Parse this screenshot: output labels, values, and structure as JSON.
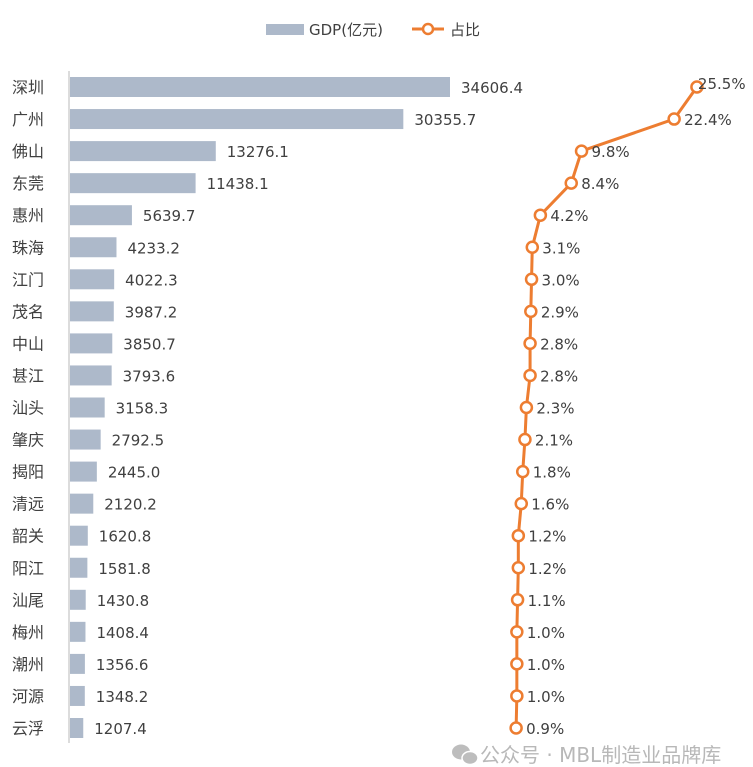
{
  "chart_data": {
    "type": "bar",
    "title": "",
    "xlabel": "",
    "ylabel": "",
    "categories": [
      "深圳",
      "广州",
      "佛山",
      "东莞",
      "惠州",
      "珠海",
      "江门",
      "茂名",
      "中山",
      "甚江",
      "汕头",
      "肇庆",
      "揭阳",
      "清远",
      "韶关",
      "阳江",
      "汕尾",
      "梅州",
      "潮州",
      "河源",
      "云浮"
    ],
    "series": [
      {
        "name": "GDP(亿元)",
        "type": "bar",
        "color": "#adb9ca",
        "values": [
          34606.4,
          30355.7,
          13276.1,
          11438.1,
          5639.7,
          4233.2,
          4022.3,
          3987.2,
          3850.7,
          3793.6,
          3158.3,
          2792.5,
          2445.0,
          2120.2,
          1620.8,
          1581.8,
          1430.8,
          1408.4,
          1356.6,
          1348.2,
          1207.4
        ],
        "labels": [
          "34606.4",
          "30355.7",
          "13276.1",
          "11438.1",
          "5639.7",
          "4233.2",
          "4022.3",
          "3987.2",
          "3850.7",
          "3793.6",
          "3158.3",
          "2792.5",
          "2445.0",
          "2120.2",
          "1620.8",
          "1581.8",
          "1430.8",
          "1408.4",
          "1356.6",
          "1348.2",
          "1207.4"
        ]
      },
      {
        "name": "占比",
        "type": "line",
        "color": "#ed7d31",
        "values": [
          25.5,
          22.4,
          9.8,
          8.4,
          4.2,
          3.1,
          3.0,
          2.9,
          2.8,
          2.8,
          2.3,
          2.1,
          1.8,
          1.6,
          1.2,
          1.2,
          1.1,
          1.0,
          1.0,
          1.0,
          0.9
        ],
        "labels": [
          "25.5%",
          "22.4%",
          "9.8%",
          "8.4%",
          "4.2%",
          "3.1%",
          "3.0%",
          "2.9%",
          "2.8%",
          "2.8%",
          "2.3%",
          "2.1%",
          "1.8%",
          "1.6%",
          "1.2%",
          "1.2%",
          "1.1%",
          "1.0%",
          "1.0%",
          "1.0%",
          "0.9%"
        ]
      }
    ],
    "legend_position": "top",
    "grid": false
  },
  "watermark": "公众号 · MBL制造业品牌库"
}
